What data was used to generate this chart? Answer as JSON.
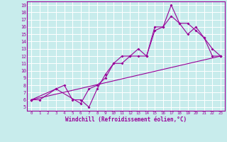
{
  "title": "",
  "xlabel": "Windchill (Refroidissement éolien,°C)",
  "xlim": [
    -0.5,
    23.5
  ],
  "ylim": [
    4.5,
    19.5
  ],
  "xticks": [
    0,
    1,
    2,
    3,
    4,
    5,
    6,
    7,
    8,
    9,
    10,
    11,
    12,
    13,
    14,
    15,
    16,
    17,
    18,
    19,
    20,
    21,
    22,
    23
  ],
  "yticks": [
    5,
    6,
    7,
    8,
    9,
    10,
    11,
    12,
    13,
    14,
    15,
    16,
    17,
    18,
    19
  ],
  "bg_color": "#c8ecec",
  "line_color": "#990099",
  "grid_color": "#ffffff",
  "line1_x": [
    0,
    1,
    3,
    4,
    5,
    6,
    7,
    8,
    9,
    10,
    11,
    12,
    13,
    14,
    15,
    16,
    17,
    18,
    19,
    20,
    21,
    22,
    23
  ],
  "line1_y": [
    6,
    6,
    7.5,
    8,
    6,
    6,
    5,
    7.5,
    9.5,
    11,
    11,
    12,
    13,
    12,
    15.5,
    16,
    19,
    16.5,
    16.5,
    15.5,
    14.5,
    13,
    12
  ],
  "line2_x": [
    0,
    3,
    6,
    7,
    8,
    9,
    10,
    11,
    12,
    13,
    14,
    15,
    16,
    17,
    18,
    19,
    20,
    21,
    22,
    23
  ],
  "line2_y": [
    6,
    7.5,
    5.5,
    7.5,
    8,
    9,
    11,
    12,
    12,
    12,
    12,
    16,
    16,
    17.5,
    16.5,
    15,
    16,
    14.5,
    12,
    12
  ],
  "line3_x": [
    0,
    23
  ],
  "line3_y": [
    6,
    12
  ]
}
